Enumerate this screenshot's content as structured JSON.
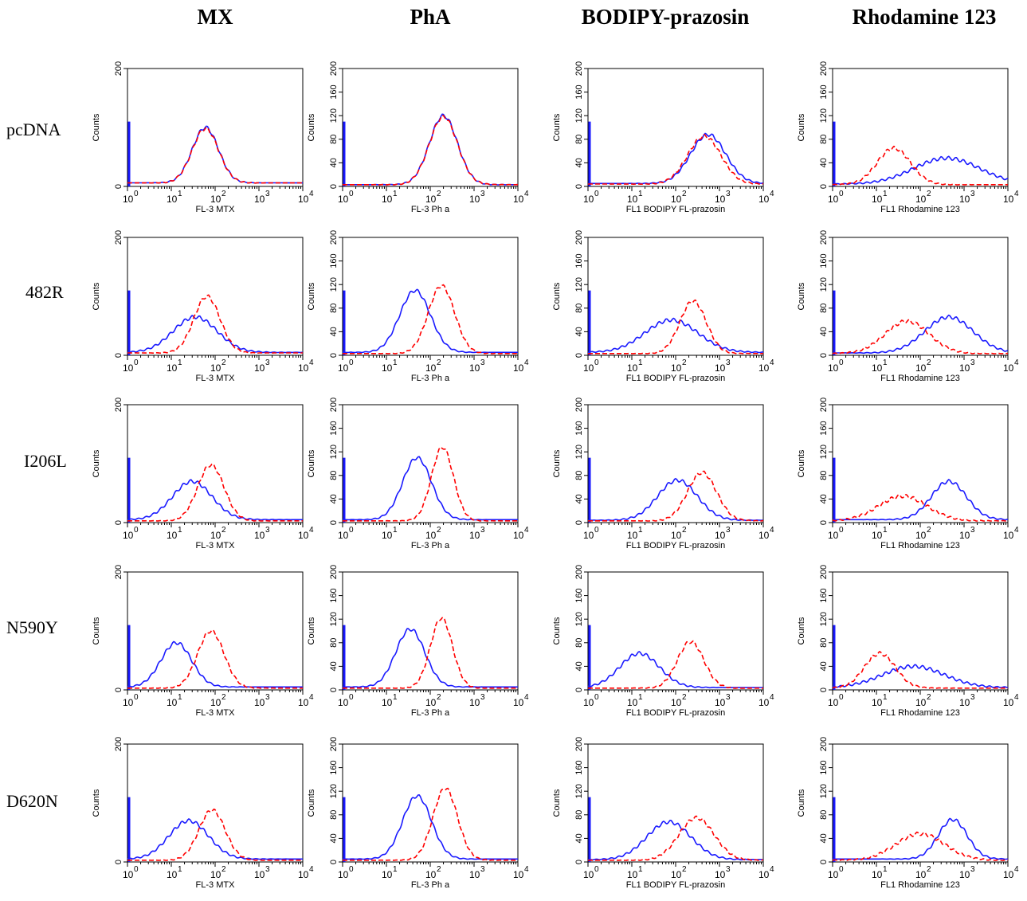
{
  "column_titles": [
    "MX",
    "PhA",
    "BODIPY-prazosin",
    "Rhodamine 123"
  ],
  "row_labels": [
    "pcDNA",
    "482R",
    "I206L",
    "N590Y",
    "D620N"
  ],
  "colors": {
    "series_1": "#1a1aff",
    "series_2": "#ff0000"
  },
  "chart_data": [
    {
      "type": "line",
      "panel": "MX / pcDNA",
      "xscale": "log",
      "xlim": [
        1,
        10000
      ],
      "ylim": [
        0,
        200
      ],
      "xlabel": "FL-3 MTX",
      "ylabel": "Counts",
      "yticks": [
        0,
        200
      ],
      "xticks": [
        "10^0",
        "10^1",
        "10^2",
        "10^3",
        "10^4"
      ],
      "series": [
        {
          "style": "solid",
          "peak_x": 60,
          "peak_y": 100,
          "width": 0.3,
          "baseline": 6
        },
        {
          "style": "dashed",
          "peak_x": 60,
          "peak_y": 98,
          "width": 0.3,
          "baseline": 6
        }
      ]
    },
    {
      "type": "line",
      "panel": "PhA / pcDNA",
      "xscale": "log",
      "xlim": [
        1,
        10000
      ],
      "ylim": [
        0,
        200
      ],
      "xlabel": "FL-3 Ph a",
      "ylabel": "Counts",
      "yticks": [
        0,
        40,
        80,
        120,
        160,
        200
      ],
      "xticks": [
        "10^0",
        "10^1",
        "10^2",
        "10^3",
        "10^4"
      ],
      "series": [
        {
          "style": "solid",
          "peak_x": 200,
          "peak_y": 120,
          "width": 0.32,
          "baseline": 3
        },
        {
          "style": "dashed",
          "peak_x": 200,
          "peak_y": 118,
          "width": 0.32,
          "baseline": 3
        }
      ]
    },
    {
      "type": "line",
      "panel": "BODIPY-prazosin / pcDNA",
      "xscale": "log",
      "xlim": [
        1,
        10000
      ],
      "ylim": [
        0,
        200
      ],
      "xlabel": "FL1 BODIPY FL-prazosin",
      "ylabel": "Counts",
      "yticks": [
        0,
        40,
        80,
        120,
        160,
        200
      ],
      "xticks": [
        "10^0",
        "10^1",
        "10^2",
        "10^3",
        "10^4"
      ],
      "series": [
        {
          "style": "solid",
          "peak_x": 550,
          "peak_y": 88,
          "width": 0.4,
          "baseline": 5
        },
        {
          "style": "dashed",
          "peak_x": 450,
          "peak_y": 85,
          "width": 0.38,
          "baseline": 4
        }
      ]
    },
    {
      "type": "line",
      "panel": "Rhodamine 123 / pcDNA",
      "xscale": "log",
      "xlim": [
        1,
        10000
      ],
      "ylim": [
        0,
        200
      ],
      "xlabel": "FL1 Rhodamine 123",
      "ylabel": "Counts",
      "yticks": [
        0,
        40,
        80,
        120,
        160,
        200
      ],
      "xticks": [
        "10^0",
        "10^1",
        "10^2",
        "10^3",
        "10^4"
      ],
      "series": [
        {
          "style": "solid",
          "peak_x": 400,
          "peak_y": 48,
          "width": 0.75,
          "baseline": 4
        },
        {
          "style": "dashed",
          "peak_x": 25,
          "peak_y": 65,
          "width": 0.38,
          "baseline": 3
        }
      ]
    },
    {
      "type": "line",
      "panel": "MX / 482R",
      "xscale": "log",
      "xlim": [
        1,
        10000
      ],
      "ylim": [
        0,
        200
      ],
      "xlabel": "FL-3 MTX",
      "ylabel": "Counts",
      "yticks": [
        0,
        200
      ],
      "xticks": [
        "10^0",
        "10^1",
        "10^2",
        "10^3",
        "10^4"
      ],
      "series": [
        {
          "style": "solid",
          "peak_x": 35,
          "peak_y": 65,
          "width": 0.5,
          "baseline": 5
        },
        {
          "style": "dashed",
          "peak_x": 65,
          "peak_y": 100,
          "width": 0.3,
          "baseline": 4
        }
      ]
    },
    {
      "type": "line",
      "panel": "PhA / 482R",
      "xscale": "log",
      "xlim": [
        1,
        10000
      ],
      "ylim": [
        0,
        200
      ],
      "xlabel": "FL-3 Ph a",
      "ylabel": "Counts",
      "yticks": [
        0,
        40,
        80,
        120,
        160,
        200
      ],
      "xticks": [
        "10^0",
        "10^1",
        "10^2",
        "10^3",
        "10^4"
      ],
      "series": [
        {
          "style": "solid",
          "peak_x": 45,
          "peak_y": 110,
          "width": 0.35,
          "baseline": 5
        },
        {
          "style": "dashed",
          "peak_x": 180,
          "peak_y": 118,
          "width": 0.3,
          "baseline": 3
        }
      ]
    },
    {
      "type": "line",
      "panel": "BODIPY-prazosin / 482R",
      "xscale": "log",
      "xlim": [
        1,
        10000
      ],
      "ylim": [
        0,
        200
      ],
      "xlabel": "FL1 BODIPY FL-prazosin",
      "ylabel": "Counts",
      "yticks": [
        0,
        40,
        80,
        120,
        160,
        200
      ],
      "xticks": [
        "10^0",
        "10^1",
        "10^2",
        "10^3",
        "10^4"
      ],
      "series": [
        {
          "style": "solid",
          "peak_x": 80,
          "peak_y": 60,
          "width": 0.6,
          "baseline": 5
        },
        {
          "style": "dashed",
          "peak_x": 250,
          "peak_y": 92,
          "width": 0.3,
          "baseline": 3
        }
      ]
    },
    {
      "type": "line",
      "panel": "Rhodamine 123 / 482R",
      "xscale": "log",
      "xlim": [
        1,
        10000
      ],
      "ylim": [
        0,
        200
      ],
      "xlabel": "FL1 Rhodamine 123",
      "ylabel": "Counts",
      "yticks": [
        0,
        40,
        80,
        120,
        160,
        200
      ],
      "xticks": [
        "10^0",
        "10^1",
        "10^2",
        "10^3",
        "10^4"
      ],
      "series": [
        {
          "style": "solid",
          "peak_x": 450,
          "peak_y": 65,
          "width": 0.55,
          "baseline": 4
        },
        {
          "style": "dashed",
          "peak_x": 50,
          "peak_y": 58,
          "width": 0.5,
          "baseline": 3
        }
      ]
    },
    {
      "type": "line",
      "panel": "MX / I206L",
      "xscale": "log",
      "xlim": [
        1,
        10000
      ],
      "ylim": [
        0,
        200
      ],
      "xlabel": "FL-3 MTX",
      "ylabel": "Counts",
      "yticks": [
        0,
        200
      ],
      "xticks": [
        "10^0",
        "10^1",
        "10^2",
        "10^3",
        "10^4"
      ],
      "series": [
        {
          "style": "solid",
          "peak_x": 30,
          "peak_y": 70,
          "width": 0.45,
          "baseline": 5
        },
        {
          "style": "dashed",
          "peak_x": 80,
          "peak_y": 98,
          "width": 0.3,
          "baseline": 3
        }
      ]
    },
    {
      "type": "line",
      "panel": "PhA / I206L",
      "xscale": "log",
      "xlim": [
        1,
        10000
      ],
      "ylim": [
        0,
        200
      ],
      "xlabel": "FL-3 Ph a",
      "ylabel": "Counts",
      "yticks": [
        0,
        40,
        80,
        120,
        160,
        200
      ],
      "xticks": [
        "10^0",
        "10^1",
        "10^2",
        "10^3",
        "10^4"
      ],
      "series": [
        {
          "style": "solid",
          "peak_x": 50,
          "peak_y": 110,
          "width": 0.33,
          "baseline": 5
        },
        {
          "style": "dashed",
          "peak_x": 190,
          "peak_y": 128,
          "width": 0.25,
          "baseline": 3
        }
      ]
    },
    {
      "type": "line",
      "panel": "BODIPY-prazosin / I206L",
      "xscale": "log",
      "xlim": [
        1,
        10000
      ],
      "ylim": [
        0,
        200
      ],
      "xlabel": "FL1 BODIPY FL-prazosin",
      "ylabel": "Counts",
      "yticks": [
        0,
        40,
        80,
        120,
        160,
        200
      ],
      "xticks": [
        "10^0",
        "10^1",
        "10^2",
        "10^3",
        "10^4"
      ],
      "series": [
        {
          "style": "solid",
          "peak_x": 110,
          "peak_y": 72,
          "width": 0.45,
          "baseline": 4
        },
        {
          "style": "dashed",
          "peak_x": 400,
          "peak_y": 85,
          "width": 0.33,
          "baseline": 3
        }
      ]
    },
    {
      "type": "line",
      "panel": "Rhodamine 123 / I206L",
      "xscale": "log",
      "xlim": [
        1,
        10000
      ],
      "ylim": [
        0,
        200
      ],
      "xlabel": "FL1 Rhodamine 123",
      "ylabel": "Counts",
      "yticks": [
        0,
        40,
        80,
        120,
        160,
        200
      ],
      "xticks": [
        "10^0",
        "10^1",
        "10^2",
        "10^3",
        "10^4"
      ],
      "series": [
        {
          "style": "solid",
          "peak_x": 450,
          "peak_y": 70,
          "width": 0.4,
          "baseline": 5
        },
        {
          "style": "dashed",
          "peak_x": 40,
          "peak_y": 45,
          "width": 0.55,
          "baseline": 3
        }
      ]
    },
    {
      "type": "line",
      "panel": "MX / N590Y",
      "xscale": "log",
      "xlim": [
        1,
        10000
      ],
      "ylim": [
        0,
        200
      ],
      "xlabel": "FL-3 MTX",
      "ylabel": "Counts",
      "yticks": [
        0,
        200
      ],
      "xticks": [
        "10^0",
        "10^1",
        "10^2",
        "10^3",
        "10^4"
      ],
      "series": [
        {
          "style": "solid",
          "peak_x": 13,
          "peak_y": 80,
          "width": 0.35,
          "baseline": 5
        },
        {
          "style": "dashed",
          "peak_x": 80,
          "peak_y": 100,
          "width": 0.3,
          "baseline": 3
        }
      ]
    },
    {
      "type": "line",
      "panel": "PhA / N590Y",
      "xscale": "log",
      "xlim": [
        1,
        10000
      ],
      "ylim": [
        0,
        200
      ],
      "xlabel": "FL-3 Ph a",
      "ylabel": "Counts",
      "yticks": [
        0,
        40,
        80,
        120,
        160,
        200
      ],
      "xticks": [
        "10^0",
        "10^1",
        "10^2",
        "10^3",
        "10^4"
      ],
      "series": [
        {
          "style": "solid",
          "peak_x": 35,
          "peak_y": 103,
          "width": 0.33,
          "baseline": 5
        },
        {
          "style": "dashed",
          "peak_x": 180,
          "peak_y": 122,
          "width": 0.25,
          "baseline": 3
        }
      ]
    },
    {
      "type": "line",
      "panel": "BODIPY-prazosin / N590Y",
      "xscale": "log",
      "xlim": [
        1,
        10000
      ],
      "ylim": [
        0,
        200
      ],
      "xlabel": "FL1 BODIPY FL-prazosin",
      "ylabel": "Counts",
      "yticks": [
        0,
        40,
        80,
        120,
        160,
        200
      ],
      "xticks": [
        "10^0",
        "10^1",
        "10^2",
        "10^3",
        "10^4"
      ],
      "series": [
        {
          "style": "solid",
          "peak_x": 15,
          "peak_y": 62,
          "width": 0.45,
          "baseline": 4
        },
        {
          "style": "dashed",
          "peak_x": 220,
          "peak_y": 82,
          "width": 0.3,
          "baseline": 3
        }
      ]
    },
    {
      "type": "line",
      "panel": "Rhodamine 123 / N590Y",
      "xscale": "log",
      "xlim": [
        1,
        10000
      ],
      "ylim": [
        0,
        200
      ],
      "xlabel": "FL1 Rhodamine 123",
      "ylabel": "Counts",
      "yticks": [
        0,
        40,
        80,
        120,
        160,
        200
      ],
      "xticks": [
        "10^0",
        "10^1",
        "10^2",
        "10^3",
        "10^4"
      ],
      "series": [
        {
          "style": "solid",
          "peak_x": 70,
          "peak_y": 40,
          "width": 0.7,
          "baseline": 4
        },
        {
          "style": "dashed",
          "peak_x": 12,
          "peak_y": 62,
          "width": 0.35,
          "baseline": 3
        }
      ]
    },
    {
      "type": "line",
      "panel": "MX / D620N",
      "xscale": "log",
      "xlim": [
        1,
        10000
      ],
      "ylim": [
        0,
        200
      ],
      "xlabel": "FL-3 MTX",
      "ylabel": "Counts",
      "yticks": [
        0,
        200
      ],
      "xticks": [
        "10^0",
        "10^1",
        "10^2",
        "10^3",
        "10^4"
      ],
      "series": [
        {
          "style": "solid",
          "peak_x": 25,
          "peak_y": 70,
          "width": 0.45,
          "baseline": 5
        },
        {
          "style": "dashed",
          "peak_x": 85,
          "peak_y": 88,
          "width": 0.3,
          "baseline": 3
        }
      ]
    },
    {
      "type": "line",
      "panel": "PhA / D620N",
      "xscale": "log",
      "xlim": [
        1,
        10000
      ],
      "ylim": [
        0,
        200
      ],
      "xlabel": "FL-3 Ph a",
      "ylabel": "Counts",
      "yticks": [
        0,
        40,
        80,
        120,
        160,
        200
      ],
      "xticks": [
        "10^0",
        "10^1",
        "10^2",
        "10^3",
        "10^4"
      ],
      "series": [
        {
          "style": "solid",
          "peak_x": 50,
          "peak_y": 112,
          "width": 0.33,
          "baseline": 5
        },
        {
          "style": "dashed",
          "peak_x": 220,
          "peak_y": 125,
          "width": 0.28,
          "baseline": 3
        }
      ]
    },
    {
      "type": "line",
      "panel": "BODIPY-prazosin / D620N",
      "xscale": "log",
      "xlim": [
        1,
        10000
      ],
      "ylim": [
        0,
        200
      ],
      "xlabel": "FL1 BODIPY FL-prazosin",
      "ylabel": "Counts",
      "yticks": [
        0,
        40,
        80,
        120,
        160,
        200
      ],
      "xticks": [
        "10^0",
        "10^1",
        "10^2",
        "10^3",
        "10^4"
      ],
      "series": [
        {
          "style": "solid",
          "peak_x": 70,
          "peak_y": 68,
          "width": 0.5,
          "baseline": 4
        },
        {
          "style": "dashed",
          "peak_x": 300,
          "peak_y": 75,
          "width": 0.4,
          "baseline": 3
        }
      ]
    },
    {
      "type": "line",
      "panel": "Rhodamine 123 / D620N",
      "xscale": "log",
      "xlim": [
        1,
        10000
      ],
      "ylim": [
        0,
        200
      ],
      "xlabel": "FL1 Rhodamine 123",
      "ylabel": "Counts",
      "yticks": [
        0,
        40,
        80,
        120,
        160,
        200
      ],
      "xticks": [
        "10^0",
        "10^1",
        "10^2",
        "10^3",
        "10^4"
      ],
      "series": [
        {
          "style": "solid",
          "peak_x": 550,
          "peak_y": 72,
          "width": 0.33,
          "baseline": 5
        },
        {
          "style": "dashed",
          "peak_x": 100,
          "peak_y": 48,
          "width": 0.55,
          "baseline": 3
        }
      ]
    }
  ]
}
